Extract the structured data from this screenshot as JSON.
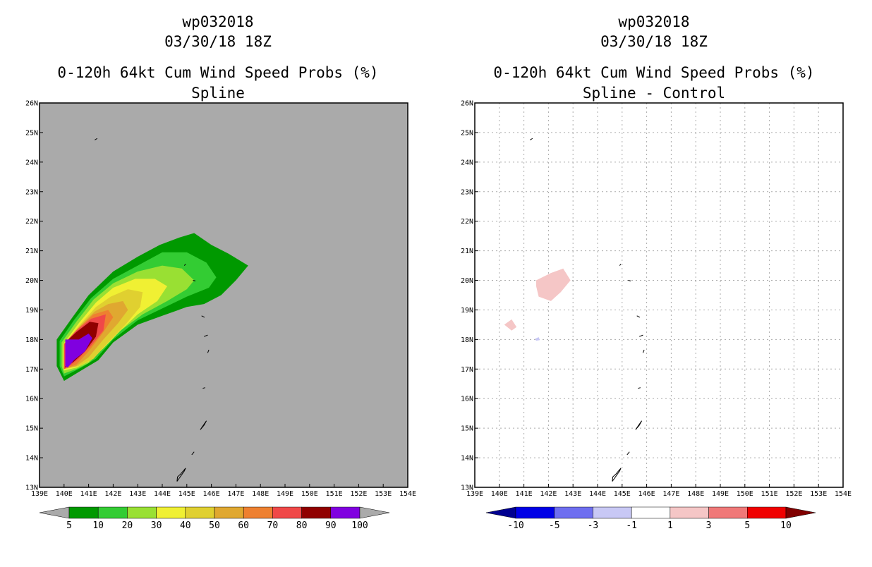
{
  "chart_data": [
    {
      "type": "contour_map",
      "storm_id": "wp032018",
      "datetime": "03/30/18 18Z",
      "title": "0-120h 64kt Cum Wind Speed Probs (%)",
      "subtitle": "Spline",
      "background": "#aaaaaa",
      "lon_range": [
        139,
        154
      ],
      "lat_range": [
        13,
        26
      ],
      "lon_ticks": [
        "139E",
        "140E",
        "141E",
        "142E",
        "143E",
        "144E",
        "145E",
        "146E",
        "147E",
        "148E",
        "149E",
        "150E",
        "151E",
        "152E",
        "153E",
        "154E"
      ],
      "lat_ticks": [
        "13N",
        "14N",
        "15N",
        "16N",
        "17N",
        "18N",
        "19N",
        "20N",
        "21N",
        "22N",
        "23N",
        "24N",
        "25N",
        "26N"
      ],
      "colorbar": {
        "labels": [
          "5",
          "10",
          "20",
          "30",
          "40",
          "50",
          "60",
          "70",
          "80",
          "90",
          "100"
        ],
        "colors": [
          "#009900",
          "#33cc33",
          "#99e033",
          "#f0f033",
          "#e0d030",
          "#e0a830",
          "#ee8030",
          "#f04848",
          "#900000",
          "#8000e0"
        ],
        "under_color": "#aaaaaa",
        "over_color": "#aaaaaa"
      },
      "contours": [
        {
          "level": 5,
          "color": "#009900",
          "points": [
            [
              140,
              16.6
            ],
            [
              139.7,
              17.1
            ],
            [
              139.7,
              18.0
            ],
            [
              140.3,
              18.7
            ],
            [
              141.0,
              19.5
            ],
            [
              142.0,
              20.3
            ],
            [
              143.0,
              20.8
            ],
            [
              143.9,
              21.2
            ],
            [
              144.7,
              21.45
            ],
            [
              145.3,
              21.6
            ],
            [
              146.0,
              21.2
            ],
            [
              146.7,
              20.9
            ],
            [
              147.5,
              20.5
            ],
            [
              147.0,
              20.0
            ],
            [
              146.4,
              19.5
            ],
            [
              145.7,
              19.2
            ],
            [
              145.0,
              19.1
            ],
            [
              144.0,
              18.8
            ],
            [
              143.0,
              18.5
            ],
            [
              142.0,
              17.9
            ],
            [
              141.4,
              17.3
            ],
            [
              140.8,
              17.0
            ]
          ]
        },
        {
          "level": 10,
          "color": "#33cc33",
          "points": [
            [
              140,
              16.75
            ],
            [
              139.82,
              17.1
            ],
            [
              139.82,
              17.95
            ],
            [
              140.4,
              18.65
            ],
            [
              141.1,
              19.4
            ],
            [
              142.0,
              20.05
            ],
            [
              143.0,
              20.5
            ],
            [
              144.0,
              20.95
            ],
            [
              145.0,
              20.95
            ],
            [
              145.8,
              20.6
            ],
            [
              146.2,
              20.1
            ],
            [
              145.9,
              19.75
            ],
            [
              145.0,
              19.45
            ],
            [
              144.0,
              19.05
            ],
            [
              143.0,
              18.65
            ],
            [
              142.0,
              18.0
            ],
            [
              141.3,
              17.35
            ],
            [
              140.7,
              17.05
            ]
          ]
        },
        {
          "level": 20,
          "color": "#99e033",
          "points": [
            [
              140,
              16.85
            ],
            [
              139.9,
              17.1
            ],
            [
              139.9,
              17.9
            ],
            [
              140.5,
              18.6
            ],
            [
              141.2,
              19.35
            ],
            [
              142.0,
              19.9
            ],
            [
              143.0,
              20.3
            ],
            [
              144.0,
              20.5
            ],
            [
              144.8,
              20.4
            ],
            [
              145.3,
              20.0
            ],
            [
              145.0,
              19.7
            ],
            [
              144.2,
              19.3
            ],
            [
              143.2,
              18.85
            ],
            [
              142.3,
              18.3
            ],
            [
              141.6,
              17.7
            ],
            [
              141.0,
              17.2
            ],
            [
              140.5,
              17.0
            ]
          ]
        },
        {
          "level": 30,
          "color": "#f0f033",
          "points": [
            [
              140,
              16.95
            ],
            [
              139.97,
              17.1
            ],
            [
              139.97,
              17.85
            ],
            [
              140.6,
              18.55
            ],
            [
              141.3,
              19.25
            ],
            [
              142.0,
              19.75
            ],
            [
              142.9,
              20.05
            ],
            [
              143.7,
              20.05
            ],
            [
              144.2,
              19.8
            ],
            [
              143.8,
              19.3
            ],
            [
              143.0,
              18.85
            ],
            [
              142.3,
              18.3
            ],
            [
              141.6,
              17.7
            ],
            [
              141.0,
              17.25
            ],
            [
              140.5,
              17.05
            ]
          ]
        },
        {
          "level": 40,
          "color": "#e0d030",
          "points": [
            [
              140,
              17.0
            ],
            [
              140.0,
              17.85
            ],
            [
              140.65,
              18.5
            ],
            [
              141.3,
              19.1
            ],
            [
              141.9,
              19.45
            ],
            [
              142.6,
              19.7
            ],
            [
              143.2,
              19.6
            ],
            [
              143.1,
              19.1
            ],
            [
              142.5,
              18.5
            ],
            [
              141.8,
              17.9
            ],
            [
              141.2,
              17.35
            ],
            [
              140.6,
              17.1
            ]
          ]
        },
        {
          "level": 50,
          "color": "#e0a830",
          "points": [
            [
              140,
              17.0
            ],
            [
              140.0,
              17.85
            ],
            [
              140.65,
              18.45
            ],
            [
              141.25,
              18.95
            ],
            [
              141.8,
              19.2
            ],
            [
              142.4,
              19.3
            ],
            [
              142.6,
              19.0
            ],
            [
              142.2,
              18.55
            ],
            [
              141.6,
              18.0
            ],
            [
              141.0,
              17.4
            ],
            [
              140.5,
              17.1
            ]
          ]
        },
        {
          "level": 60,
          "color": "#ee8030",
          "points": [
            [
              140,
              17.0
            ],
            [
              140.0,
              17.85
            ],
            [
              140.6,
              18.4
            ],
            [
              141.2,
              18.85
            ],
            [
              141.8,
              19.0
            ],
            [
              142.0,
              18.75
            ],
            [
              141.6,
              18.25
            ],
            [
              141.0,
              17.6
            ],
            [
              140.5,
              17.15
            ]
          ]
        },
        {
          "level": 70,
          "color": "#f04848",
          "points": [
            [
              140,
              17.0
            ],
            [
              140.0,
              17.85
            ],
            [
              140.5,
              18.3
            ],
            [
              141.1,
              18.7
            ],
            [
              141.7,
              18.85
            ],
            [
              141.6,
              18.3
            ],
            [
              141.1,
              17.8
            ],
            [
              140.6,
              17.35
            ],
            [
              140.3,
              17.15
            ]
          ]
        },
        {
          "level": 80,
          "color": "#900000",
          "points": [
            [
              140.05,
              17.05
            ],
            [
              140.05,
              17.9
            ],
            [
              140.5,
              18.25
            ],
            [
              141.05,
              18.6
            ],
            [
              141.4,
              18.55
            ],
            [
              141.3,
              18.1
            ],
            [
              140.85,
              17.6
            ],
            [
              140.4,
              17.25
            ]
          ]
        },
        {
          "level": 90,
          "color": "#8000e0",
          "points": [
            [
              140.05,
              17.1
            ],
            [
              140.05,
              18.0
            ],
            [
              140.6,
              18.0
            ],
            [
              141.0,
              18.2
            ],
            [
              141.15,
              18.05
            ],
            [
              140.85,
              17.6
            ],
            [
              140.4,
              17.3
            ],
            [
              140.15,
              17.05
            ]
          ]
        }
      ]
    },
    {
      "type": "contour_map",
      "storm_id": "wp032018",
      "datetime": "03/30/18 18Z",
      "title": "0-120h 64kt Cum Wind Speed Probs (%)",
      "subtitle": "Spline - Control",
      "background": "#ffffff",
      "grid": true,
      "lon_range": [
        139,
        154
      ],
      "lat_range": [
        13,
        26
      ],
      "lon_ticks": [
        "139E",
        "140E",
        "141E",
        "142E",
        "143E",
        "144E",
        "145E",
        "146E",
        "147E",
        "148E",
        "149E",
        "150E",
        "151E",
        "152E",
        "153E",
        "154E"
      ],
      "lat_ticks": [
        "13N",
        "14N",
        "15N",
        "16N",
        "17N",
        "18N",
        "19N",
        "20N",
        "21N",
        "22N",
        "23N",
        "24N",
        "25N",
        "26N"
      ],
      "colorbar": {
        "labels": [
          "-10",
          "-5",
          "-3",
          "-1",
          "1",
          "3",
          "5",
          "10"
        ],
        "colors": [
          "#0000e6",
          "#6e6ef0",
          "#c8c8f5",
          "#ffffff",
          "#f5c6c6",
          "#f07878",
          "#f00000"
        ],
        "under_color": "#000090",
        "over_color": "#800000"
      },
      "contours": [
        {
          "level": 1,
          "color": "#f5c6c6",
          "points": [
            [
              141.5,
              20.0
            ],
            [
              142.1,
              20.25
            ],
            [
              142.6,
              20.4
            ],
            [
              142.9,
              20.0
            ],
            [
              142.5,
              19.6
            ],
            [
              142.1,
              19.3
            ],
            [
              141.6,
              19.45
            ],
            [
              141.5,
              19.8
            ]
          ]
        },
        {
          "level": 1,
          "color": "#f5c6c6",
          "points": [
            [
              140.2,
              18.5
            ],
            [
              140.5,
              18.68
            ],
            [
              140.7,
              18.42
            ],
            [
              140.5,
              18.3
            ]
          ]
        },
        {
          "level": -1,
          "color": "#c8c8f5",
          "points": [
            [
              141.45,
              18.02
            ],
            [
              141.6,
              18.08
            ],
            [
              141.65,
              17.98
            ],
            [
              141.5,
              17.96
            ]
          ]
        }
      ]
    }
  ]
}
